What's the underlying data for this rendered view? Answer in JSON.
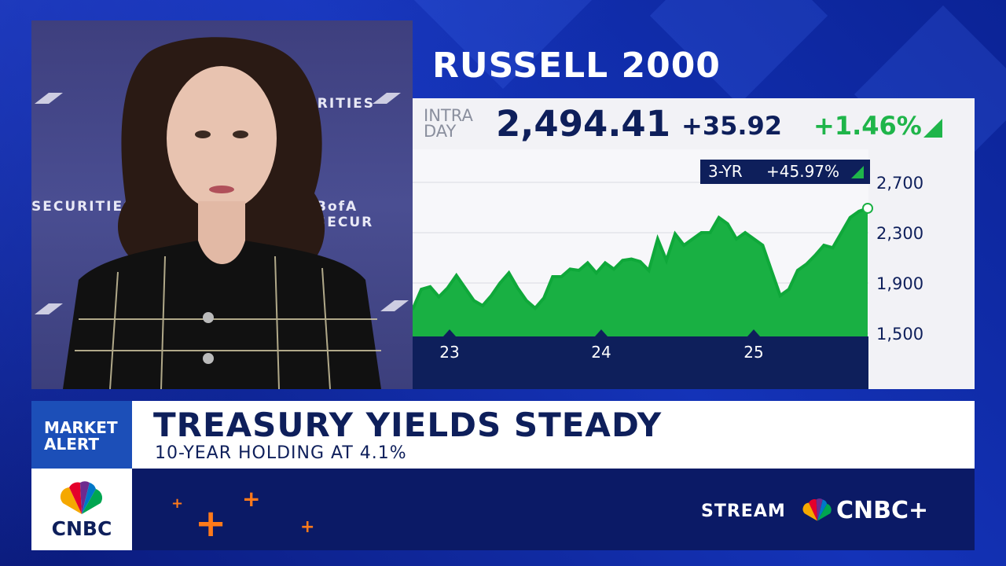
{
  "video": {
    "backdrop_top": "URITIES",
    "backdrop_left": "SECURITIES",
    "backdrop_right": "BofA SECUR"
  },
  "chart_card": {
    "title": "RUSSELL 2000",
    "intraday_line1": "INTRA",
    "intraday_line2": "DAY",
    "price": "2,494.41",
    "change": "+35.92",
    "change_pct": "+1.46%",
    "badge_period": "3-YR",
    "badge_change": "+45.97%",
    "accent_up": "#1fb54a",
    "navy": "#0e1f5b"
  },
  "chart_data": {
    "type": "area",
    "x_tick_labels": [
      "23",
      "24",
      "25"
    ],
    "y_tick_labels": [
      "2,700",
      "2,300",
      "1,900",
      "1,500"
    ],
    "y_ticks": [
      2700,
      2300,
      1900,
      1500
    ],
    "ylim": [
      1500,
      2700
    ],
    "grid": true,
    "values": [
      1690,
      1850,
      1870,
      1790,
      1860,
      1960,
      1860,
      1760,
      1720,
      1800,
      1900,
      1980,
      1860,
      1760,
      1700,
      1780,
      1950,
      1950,
      2010,
      2000,
      2060,
      1980,
      2060,
      2010,
      2080,
      2090,
      2070,
      2000,
      2250,
      2080,
      2290,
      2200,
      2250,
      2300,
      2300,
      2420,
      2370,
      2250,
      2300,
      2250,
      2200,
      2000,
      1800,
      1850,
      2000,
      2050,
      2120,
      2200,
      2180,
      2300,
      2420,
      2470,
      2494
    ]
  },
  "lower_third": {
    "alert_line1": "MARKET",
    "alert_line2": "ALERT",
    "headline": "TREASURY YIELDS STEADY",
    "subline": "10-YEAR HOLDING AT 4.1%"
  },
  "branding": {
    "logo_text": "CNBC",
    "stream_label": "STREAM",
    "service": "CNBC+"
  }
}
